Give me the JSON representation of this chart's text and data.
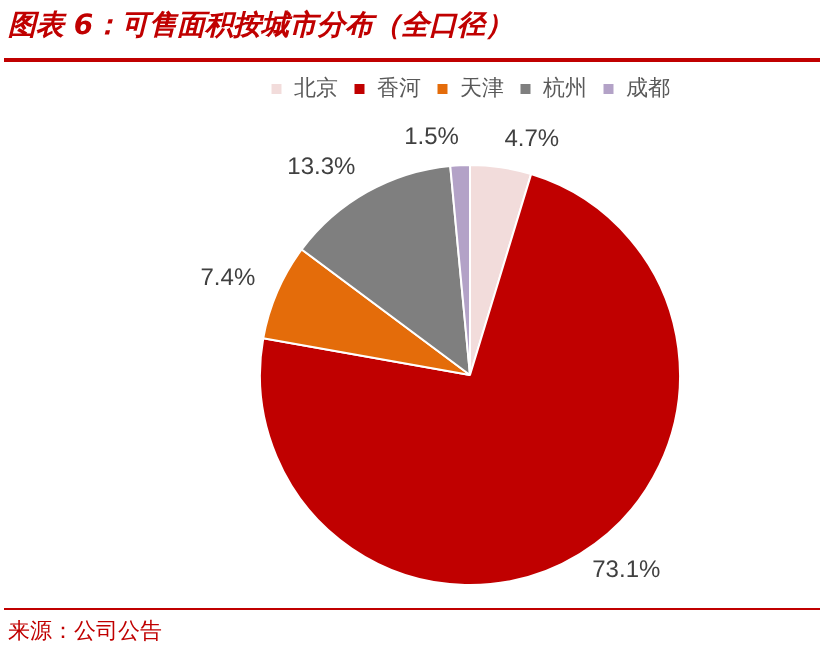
{
  "chart_data": {
    "type": "pie",
    "title": "图表 6：可售面积按城市分布（全口径）",
    "categories": [
      "北京",
      "香河",
      "天津",
      "杭州",
      "成都"
    ],
    "values": [
      4.7,
      73.1,
      7.4,
      13.3,
      1.5
    ],
    "value_labels": [
      "4.7%",
      "73.1%",
      "7.4%",
      "13.3%",
      "1.5%"
    ],
    "colors": [
      "#f2dcdb",
      "#c00000",
      "#e46c0a",
      "#7f7f7f",
      "#b3a2c7"
    ],
    "legend": "top",
    "annotations": [
      "来源：公司公告"
    ]
  }
}
